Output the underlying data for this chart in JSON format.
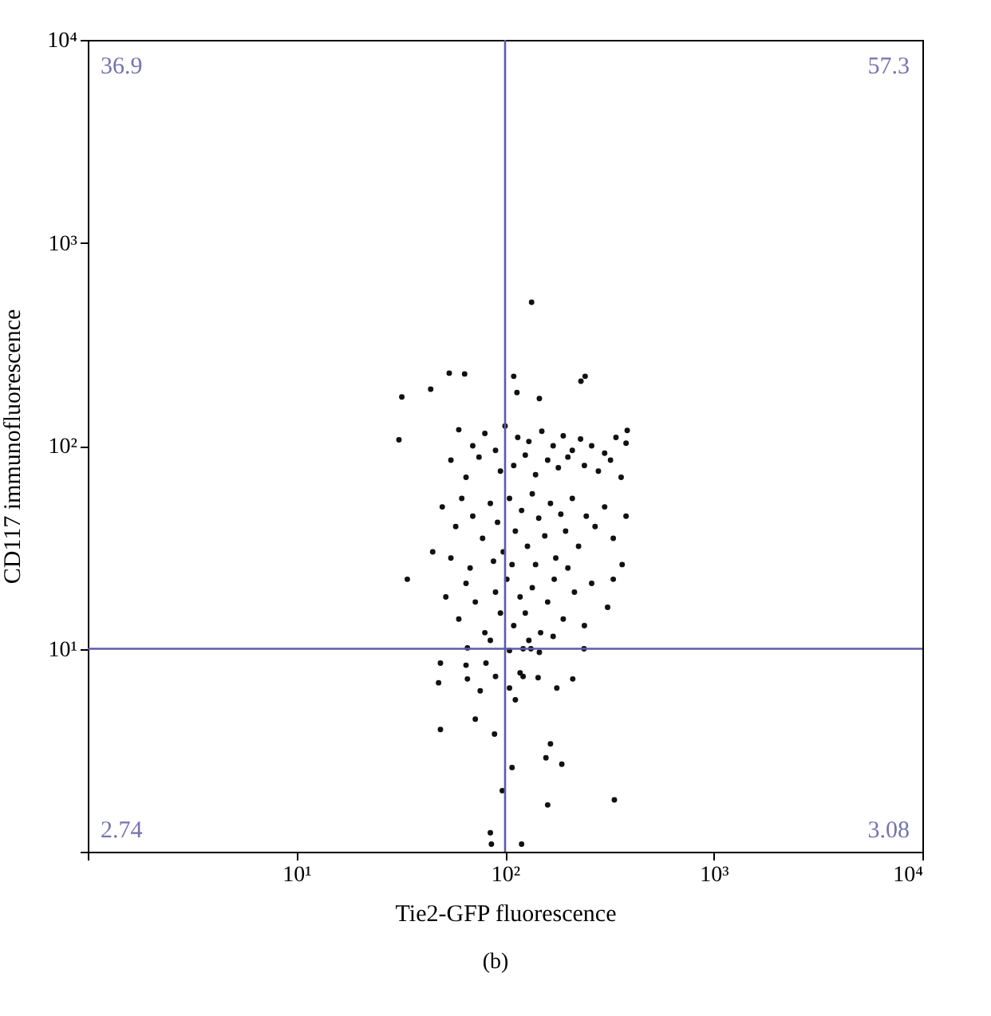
{
  "chart_data": {
    "type": "scatter",
    "xlabel": "Tie2-GFP fluorescence",
    "ylabel": "CD117 immunofluorescence",
    "annotations": [
      "36.9",
      "57.3",
      "2.74",
      "3.08",
      "(b)"
    ],
    "log": "xy",
    "grid": false,
    "marker": "circle",
    "xlim": [
      1,
      10000
    ],
    "ylim": [
      1,
      10000
    ],
    "xticks": [
      {
        "value": 1,
        "label": null
      },
      {
        "value": 10,
        "label": "10¹"
      },
      {
        "value": 100,
        "label": "10²"
      },
      {
        "value": 1000,
        "label": "10³"
      },
      {
        "value": 10000,
        "label": "10⁴"
      }
    ],
    "yticks": [
      {
        "value": 1,
        "label": null
      },
      {
        "value": 10,
        "label": "10¹"
      },
      {
        "value": 100,
        "label": "10²"
      },
      {
        "value": 1000,
        "label": "10³"
      },
      {
        "value": 10000,
        "label": "10⁴"
      }
    ],
    "ref_lines": [
      {
        "axis": "x",
        "value": 100,
        "color": "#5c5ca8"
      },
      {
        "axis": "y",
        "value": 10,
        "color": "#5c5ca8"
      }
    ],
    "series": [
      {
        "color": "#111111",
        "x": [
          134,
          54,
          64,
          32,
          44,
          110,
          114,
          231,
          242,
          146,
          31,
          385,
          380,
          34,
          364,
          330,
          49,
          48,
          65,
          76,
          81,
          66,
          90,
          118,
          122,
          105,
          144,
          112,
          177,
          211,
          239,
          49,
          72,
          89,
          165,
          157,
          187,
          108,
          97,
          160,
          334,
          85,
          86,
          120,
          105,
          122,
          133,
          146,
          66,
          60,
          70,
          80,
          90,
          100,
          115,
          130,
          150,
          170,
          190,
          210,
          230,
          260,
          300,
          340,
          55,
          65,
          75,
          95,
          110,
          125,
          140,
          160,
          180,
          200,
          240,
          280,
          320,
          360,
          50,
          58,
          62,
          70,
          78,
          85,
          92,
          98,
          105,
          112,
          120,
          128,
          135,
          145,
          155,
          165,
          175,
          185,
          195,
          210,
          225,
          245,
          270,
          300,
          330,
          380,
          45,
          55,
          68,
          88,
          108,
          140,
          200,
          52,
          60,
          65,
          72,
          80,
          90,
          95,
          102,
          110,
          118,
          125,
          135,
          148,
          160,
          172,
          190,
          215,
          240,
          260,
          310,
          85,
          130,
          170
        ],
        "values": [
          510,
          228,
          226,
          174,
          190,
          220,
          183,
          208,
          220,
          171,
          107,
          119,
          103,
          22,
          26,
          22,
          8.5,
          6.8,
          8.3,
          6.2,
          8.5,
          7.1,
          7.3,
          7.6,
          7.3,
          6.4,
          7.2,
          5.6,
          6.4,
          7.1,
          10,
          4,
          4.5,
          3.8,
          3.4,
          2.9,
          2.7,
          2.6,
          2,
          1.7,
          1.8,
          1.24,
          1.09,
          1.09,
          9.8,
          10,
          10,
          9.6,
          10.1,
          120,
          100,
          115,
          95,
          125,
          110,
          105,
          118,
          100,
          112,
          95,
          108,
          100,
          92,
          110,
          85,
          70,
          88,
          75,
          80,
          90,
          72,
          85,
          78,
          88,
          80,
          75,
          85,
          70,
          50,
          40,
          55,
          45,
          35,
          52,
          42,
          30,
          55,
          38,
          48,
          32,
          58,
          44,
          36,
          52,
          28,
          46,
          38,
          55,
          32,
          45,
          40,
          50,
          35,
          45,
          30,
          28,
          25,
          27,
          26,
          26,
          25,
          18,
          14,
          21,
          17,
          12,
          19,
          15,
          22,
          13,
          18,
          15,
          20,
          12,
          17,
          22,
          14,
          19,
          13,
          21,
          16,
          11,
          11,
          11.5
        ]
      }
    ]
  }
}
